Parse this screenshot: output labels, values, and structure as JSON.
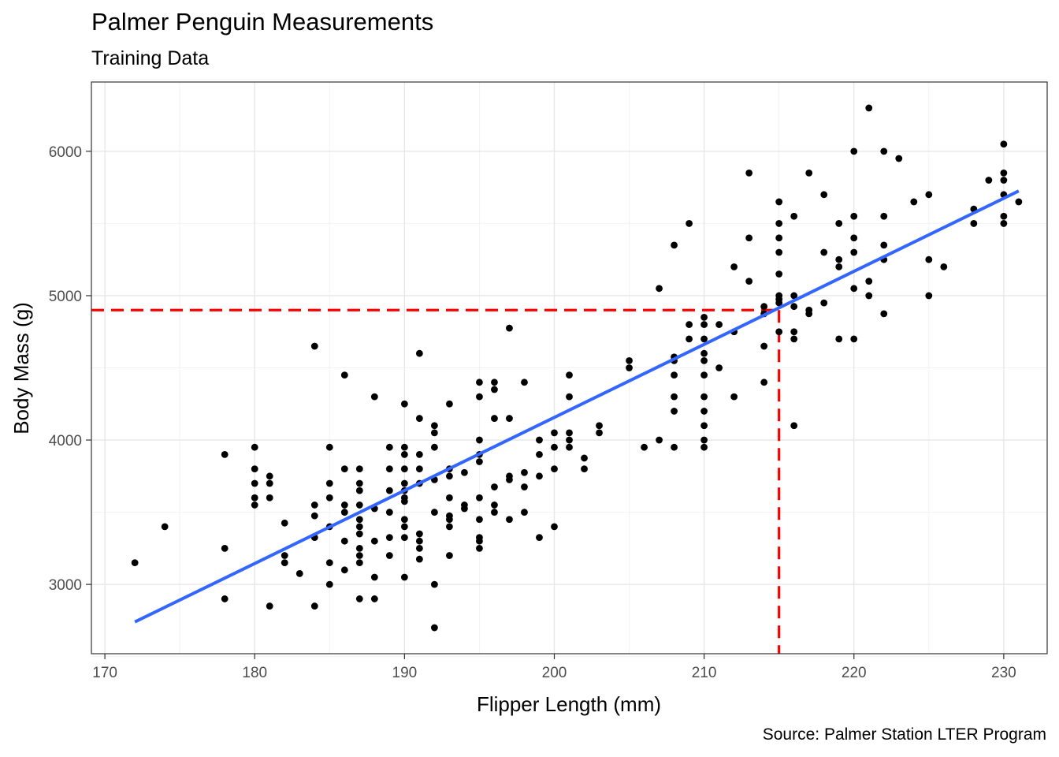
{
  "chart_data": {
    "type": "scatter",
    "title": "Palmer Penguin Measurements",
    "subtitle": "Training Data",
    "caption": "Source: Palmer Station LTER Program",
    "xlabel": "Flipper Length (mm)",
    "ylabel": "Body Mass (g)",
    "xlim": [
      169.1,
      232.9
    ],
    "ylim": [
      2520,
      6480
    ],
    "xticks": [
      170,
      180,
      190,
      200,
      210,
      220,
      230
    ],
    "yticks": [
      3000,
      4000,
      5000,
      6000
    ],
    "grid": true,
    "points": [
      [
        172,
        3150
      ],
      [
        174,
        3400
      ],
      [
        178,
        3900
      ],
      [
        178,
        3250
      ],
      [
        178,
        2900
      ],
      [
        180,
        3950
      ],
      [
        180,
        3800
      ],
      [
        180,
        3700
      ],
      [
        180,
        3600
      ],
      [
        180,
        3550
      ],
      [
        181,
        3750
      ],
      [
        181,
        3700
      ],
      [
        181,
        3600
      ],
      [
        181,
        2850
      ],
      [
        182,
        3425
      ],
      [
        182,
        3200
      ],
      [
        182,
        3150
      ],
      [
        183,
        3075
      ],
      [
        184,
        4650
      ],
      [
        184,
        3550
      ],
      [
        184,
        3475
      ],
      [
        184,
        3325
      ],
      [
        184,
        2850
      ],
      [
        185,
        3950
      ],
      [
        185,
        3700
      ],
      [
        185,
        3600
      ],
      [
        185,
        3400
      ],
      [
        185,
        3150
      ],
      [
        185,
        3000
      ],
      [
        186,
        4450
      ],
      [
        186,
        3800
      ],
      [
        186,
        3550
      ],
      [
        186,
        3500
      ],
      [
        186,
        3300
      ],
      [
        186,
        3100
      ],
      [
        187,
        3800
      ],
      [
        187,
        3700
      ],
      [
        187,
        3650
      ],
      [
        187,
        3550
      ],
      [
        187,
        3450
      ],
      [
        187,
        3400
      ],
      [
        187,
        3350
      ],
      [
        187,
        3250
      ],
      [
        187,
        3200
      ],
      [
        187,
        3150
      ],
      [
        187,
        2900
      ],
      [
        188,
        4300
      ],
      [
        188,
        3525
      ],
      [
        188,
        3300
      ],
      [
        188,
        3050
      ],
      [
        188,
        2900
      ],
      [
        189,
        3950
      ],
      [
        189,
        3800
      ],
      [
        189,
        3650
      ],
      [
        189,
        3500
      ],
      [
        189,
        3325
      ],
      [
        189,
        3200
      ],
      [
        190,
        4250
      ],
      [
        190,
        3950
      ],
      [
        190,
        3900
      ],
      [
        190,
        3800
      ],
      [
        190,
        3700
      ],
      [
        190,
        3650
      ],
      [
        190,
        3600
      ],
      [
        190,
        3575
      ],
      [
        190,
        3450
      ],
      [
        190,
        3400
      ],
      [
        190,
        3325
      ],
      [
        190,
        3050
      ],
      [
        191,
        4600
      ],
      [
        191,
        4150
      ],
      [
        191,
        3900
      ],
      [
        191,
        3800
      ],
      [
        191,
        3700
      ],
      [
        191,
        3350
      ],
      [
        191,
        3300
      ],
      [
        191,
        3250
      ],
      [
        191,
        3175
      ],
      [
        192,
        4100
      ],
      [
        192,
        4050
      ],
      [
        192,
        3950
      ],
      [
        192,
        3725
      ],
      [
        192,
        3500
      ],
      [
        192,
        3000
      ],
      [
        192,
        2700
      ],
      [
        193,
        4250
      ],
      [
        193,
        3800
      ],
      [
        193,
        3750
      ],
      [
        193,
        3600
      ],
      [
        193,
        3475
      ],
      [
        193,
        3450
      ],
      [
        193,
        3400
      ],
      [
        193,
        3200
      ],
      [
        194,
        3775
      ],
      [
        194,
        3550
      ],
      [
        194,
        3525
      ],
      [
        195,
        4400
      ],
      [
        195,
        4300
      ],
      [
        195,
        4000
      ],
      [
        195,
        3900
      ],
      [
        195,
        3850
      ],
      [
        195,
        3600
      ],
      [
        195,
        3450
      ],
      [
        195,
        3325
      ],
      [
        195,
        3300
      ],
      [
        195,
        3250
      ],
      [
        196,
        4400
      ],
      [
        196,
        4350
      ],
      [
        196,
        4150
      ],
      [
        196,
        3675
      ],
      [
        196,
        3550
      ],
      [
        196,
        3500
      ],
      [
        197,
        4775
      ],
      [
        197,
        4150
      ],
      [
        197,
        3750
      ],
      [
        197,
        3725
      ],
      [
        197,
        3450
      ],
      [
        198,
        4400
      ],
      [
        198,
        3775
      ],
      [
        198,
        3675
      ],
      [
        198,
        3500
      ],
      [
        199,
        4000
      ],
      [
        199,
        3900
      ],
      [
        199,
        3750
      ],
      [
        199,
        3325
      ],
      [
        200,
        4050
      ],
      [
        200,
        3950
      ],
      [
        200,
        3800
      ],
      [
        200,
        3400
      ],
      [
        201,
        4450
      ],
      [
        201,
        4300
      ],
      [
        201,
        4050
      ],
      [
        201,
        4000
      ],
      [
        201,
        3950
      ],
      [
        202,
        3875
      ],
      [
        202,
        3800
      ],
      [
        203,
        4100
      ],
      [
        203,
        4050
      ],
      [
        205,
        4550
      ],
      [
        205,
        4500
      ],
      [
        206,
        3950
      ],
      [
        207,
        5050
      ],
      [
        207,
        4000
      ],
      [
        208,
        5350
      ],
      [
        208,
        4575
      ],
      [
        208,
        4550
      ],
      [
        208,
        4450
      ],
      [
        208,
        4300
      ],
      [
        208,
        4200
      ],
      [
        208,
        3950
      ],
      [
        209,
        5500
      ],
      [
        209,
        4800
      ],
      [
        209,
        4700
      ],
      [
        210,
        4850
      ],
      [
        210,
        4800
      ],
      [
        210,
        4700
      ],
      [
        210,
        4600
      ],
      [
        210,
        4550
      ],
      [
        210,
        4450
      ],
      [
        210,
        4300
      ],
      [
        210,
        4200
      ],
      [
        210,
        4100
      ],
      [
        210,
        4000
      ],
      [
        210,
        3950
      ],
      [
        211,
        4800
      ],
      [
        211,
        4500
      ],
      [
        212,
        5200
      ],
      [
        212,
        4750
      ],
      [
        212,
        4300
      ],
      [
        213,
        5850
      ],
      [
        213,
        5400
      ],
      [
        213,
        5100
      ],
      [
        214,
        4925
      ],
      [
        214,
        4875
      ],
      [
        214,
        4650
      ],
      [
        214,
        4400
      ],
      [
        215,
        5650
      ],
      [
        215,
        5500
      ],
      [
        215,
        5400
      ],
      [
        215,
        5300
      ],
      [
        215,
        5150
      ],
      [
        215,
        5000
      ],
      [
        215,
        4975
      ],
      [
        215,
        4950
      ],
      [
        215,
        4750
      ],
      [
        216,
        5550
      ],
      [
        216,
        5000
      ],
      [
        216,
        4925
      ],
      [
        216,
        4750
      ],
      [
        216,
        4700
      ],
      [
        216,
        4100
      ],
      [
        217,
        5850
      ],
      [
        217,
        4900
      ],
      [
        217,
        4875
      ],
      [
        218,
        5700
      ],
      [
        218,
        5300
      ],
      [
        218,
        4950
      ],
      [
        219,
        5500
      ],
      [
        219,
        5250
      ],
      [
        219,
        5200
      ],
      [
        219,
        4700
      ],
      [
        220,
        6000
      ],
      [
        220,
        5550
      ],
      [
        220,
        5400
      ],
      [
        220,
        5300
      ],
      [
        220,
        5050
      ],
      [
        220,
        4700
      ],
      [
        221,
        6300
      ],
      [
        221,
        5100
      ],
      [
        221,
        5000
      ],
      [
        222,
        6000
      ],
      [
        222,
        5550
      ],
      [
        222,
        5350
      ],
      [
        222,
        5250
      ],
      [
        222,
        4875
      ],
      [
        223,
        5950
      ],
      [
        224,
        5650
      ],
      [
        225,
        5700
      ],
      [
        225,
        5250
      ],
      [
        225,
        5000
      ],
      [
        226,
        5200
      ],
      [
        228,
        5600
      ],
      [
        228,
        5500
      ],
      [
        229,
        5800
      ],
      [
        230,
        6050
      ],
      [
        230,
        5850
      ],
      [
        230,
        5800
      ],
      [
        230,
        5700
      ],
      [
        230,
        5550
      ],
      [
        230,
        5500
      ],
      [
        231,
        5650
      ]
    ],
    "trend_line": {
      "x": [
        172,
        231
      ],
      "y": [
        2740,
        5725
      ],
      "color": "#3366ff"
    },
    "reference_point": {
      "x": 215,
      "y": 4900,
      "color": "#ff0000"
    },
    "point_color": "#000000"
  }
}
